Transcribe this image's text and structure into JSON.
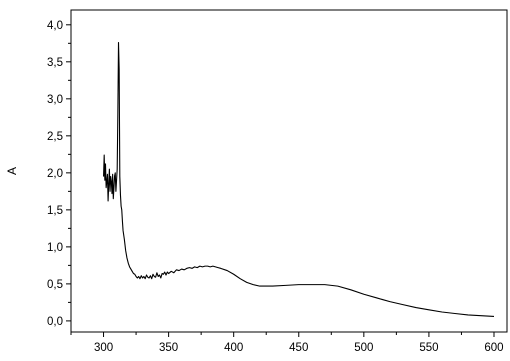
{
  "chart_data": {
    "type": "line",
    "title": "",
    "xlabel": "",
    "ylabel": "A",
    "xlim": [
      275,
      610
    ],
    "ylim": [
      -0.15,
      4.2
    ],
    "x_ticks": [
      300,
      350,
      400,
      450,
      500,
      550,
      600
    ],
    "x_tick_labels": [
      "300",
      "350",
      "400",
      "450",
      "500",
      "550",
      "600"
    ],
    "y_ticks": [
      0.0,
      0.5,
      1.0,
      1.5,
      2.0,
      2.5,
      3.0,
      3.5,
      4.0
    ],
    "y_tick_labels": [
      "0,0",
      "0,5",
      "1,0",
      "1,5",
      "2,0",
      "2,5",
      "3,0",
      "3,5",
      "4,0"
    ],
    "grid": false,
    "legend": "none",
    "series": [
      {
        "color": "#000000",
        "x": [
          300,
          300.5,
          301,
          301.5,
          302,
          302.5,
          303,
          303.5,
          304,
          304.5,
          305,
          305.5,
          306,
          306.5,
          307,
          307.5,
          308,
          308.5,
          309,
          309.5,
          310,
          310.5,
          311,
          311.5,
          312,
          312.5,
          313,
          313.5,
          314,
          314.5,
          315,
          316,
          317,
          318,
          319,
          320,
          321,
          322,
          323,
          324,
          325,
          326,
          327,
          328,
          329,
          330,
          331,
          332,
          333,
          334,
          335,
          336,
          337,
          338,
          339,
          340,
          341,
          342,
          343,
          344,
          345,
          346,
          347,
          348,
          349,
          350,
          352,
          354,
          356,
          358,
          360,
          362,
          364,
          366,
          368,
          370,
          372,
          374,
          376,
          378,
          380,
          382,
          384,
          386,
          388,
          390,
          395,
          400,
          405,
          410,
          415,
          420,
          425,
          430,
          440,
          450,
          460,
          470,
          480,
          490,
          500,
          510,
          520,
          530,
          540,
          550,
          560,
          570,
          580,
          590,
          600
        ],
        "y": [
          1.95,
          2.24,
          1.9,
          2.12,
          1.8,
          1.88,
          1.98,
          1.62,
          1.85,
          2.05,
          1.75,
          1.95,
          1.88,
          1.72,
          1.98,
          1.65,
          1.8,
          1.96,
          2.0,
          1.75,
          1.9,
          2.05,
          2.8,
          3.76,
          3.4,
          1.95,
          1.7,
          1.55,
          1.5,
          1.35,
          1.22,
          1.1,
          0.95,
          0.85,
          0.78,
          0.73,
          0.7,
          0.67,
          0.64,
          0.63,
          0.6,
          0.58,
          0.6,
          0.57,
          0.61,
          0.58,
          0.6,
          0.57,
          0.62,
          0.59,
          0.58,
          0.61,
          0.57,
          0.63,
          0.6,
          0.59,
          0.65,
          0.6,
          0.62,
          0.58,
          0.64,
          0.63,
          0.66,
          0.62,
          0.66,
          0.64,
          0.67,
          0.65,
          0.69,
          0.68,
          0.7,
          0.69,
          0.71,
          0.72,
          0.71,
          0.73,
          0.72,
          0.74,
          0.73,
          0.74,
          0.74,
          0.73,
          0.74,
          0.73,
          0.72,
          0.71,
          0.68,
          0.63,
          0.57,
          0.52,
          0.49,
          0.47,
          0.47,
          0.47,
          0.48,
          0.49,
          0.49,
          0.49,
          0.47,
          0.42,
          0.36,
          0.31,
          0.26,
          0.22,
          0.18,
          0.15,
          0.12,
          0.1,
          0.08,
          0.07,
          0.06
        ]
      }
    ]
  }
}
